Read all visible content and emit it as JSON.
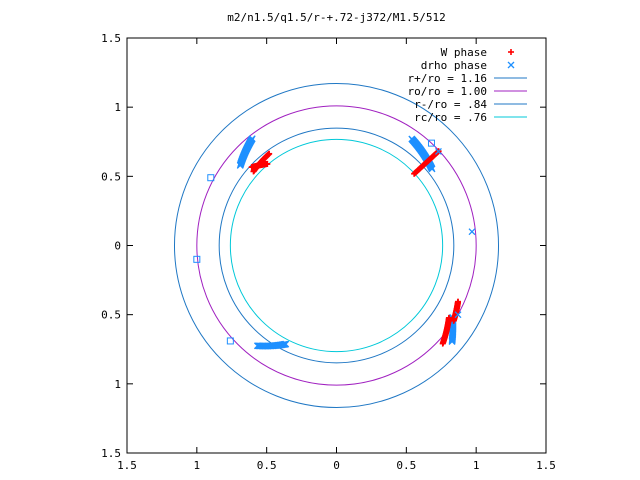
{
  "chart_data": {
    "type": "scatter",
    "title": "m2/n1.5/q1.5/r-+.72-j372/M1.5/512",
    "xlim": [
      -1.5,
      1.5
    ],
    "ylim": [
      -1.5,
      1.5
    ],
    "x_ticks": [
      {
        "value": -1.5,
        "label": "1.5"
      },
      {
        "value": -1,
        "label": "1"
      },
      {
        "value": -0.5,
        "label": "0.5"
      },
      {
        "value": 0,
        "label": "0"
      },
      {
        "value": 0.5,
        "label": "0.5"
      },
      {
        "value": 1,
        "label": "1"
      },
      {
        "value": 1.5,
        "label": "1.5"
      }
    ],
    "y_ticks": [
      {
        "value": 1.5,
        "label": "1.5"
      },
      {
        "value": 1,
        "label": "1"
      },
      {
        "value": 0.5,
        "label": "0.5"
      },
      {
        "value": 0,
        "label": "0"
      },
      {
        "value": -0.5,
        "label": "0.5"
      },
      {
        "value": -1,
        "label": "1"
      },
      {
        "value": -1.5,
        "label": "1.5"
      }
    ],
    "grid": false,
    "legend_position": "top-right",
    "series": [
      {
        "name": "W phase",
        "kind": "points",
        "marker": "plus",
        "color": "#ff0000",
        "arcs": [
          {
            "r_start": 0.77,
            "r_end": 0.83,
            "theta_start_deg": 130,
            "theta_end_deg": 137
          },
          {
            "r_start": 0.8,
            "r_end": 0.82,
            "theta_start_deg": 138,
            "theta_end_deg": 126
          },
          {
            "r_start": 0.76,
            "r_end": 1.0,
            "theta_start_deg": 43,
            "theta_end_deg": 43
          },
          {
            "r_start": 0.96,
            "r_end": 1.0,
            "theta_start_deg": -25,
            "theta_end_deg": -33
          },
          {
            "r_start": 0.96,
            "r_end": 1.04,
            "theta_start_deg": -33,
            "theta_end_deg": -43
          }
        ]
      },
      {
        "name": "drho phase",
        "kind": "points",
        "marker": "cross",
        "color": "#1e90ff",
        "arcs": [
          {
            "r_start": 0.9,
            "r_end": 0.98,
            "theta_start_deg": 140,
            "theta_end_deg": 128
          },
          {
            "r_start": 0.88,
            "r_end": 0.94,
            "theta_start_deg": 39,
            "theta_end_deg": 55
          },
          {
            "r_start": 0.98,
            "r_end": 1.08,
            "theta_start_deg": -32,
            "theta_end_deg": -40
          },
          {
            "r_start": 0.8,
            "r_end": 0.92,
            "theta_start_deg": -117,
            "theta_end_deg": -128
          }
        ]
      },
      {
        "name": "r+/ro = 1.16",
        "kind": "circle",
        "r": 1.16,
        "color": "#1f77c4"
      },
      {
        "name": "ro/ro = 1.00",
        "kind": "circle",
        "r": 1.0,
        "color": "#a020c0"
      },
      {
        "name": "r-/ro = .84",
        "kind": "circle",
        "r": 0.84,
        "color": "#1f77c4"
      },
      {
        "name": "rc/ro = .76",
        "kind": "circle",
        "r": 0.76,
        "color": "#00c8d8"
      }
    ],
    "isolated_markers": [
      {
        "x": 0.97,
        "y": 0.1,
        "marker": "cross",
        "color": "#1e90ff"
      },
      {
        "x": 0.73,
        "y": 0.68,
        "marker": "cross",
        "color": "#1e90ff"
      },
      {
        "x": 0.87,
        "y": -0.5,
        "marker": "cross",
        "color": "#1e90ff"
      },
      {
        "x": 0.68,
        "y": 0.74,
        "marker": "square",
        "color": "#1e90ff"
      },
      {
        "x": -0.9,
        "y": 0.49,
        "marker": "square",
        "color": "#1e90ff"
      },
      {
        "x": -1.0,
        "y": -0.1,
        "marker": "square",
        "color": "#1e90ff"
      },
      {
        "x": -0.76,
        "y": -0.69,
        "marker": "square",
        "color": "#1e90ff"
      }
    ]
  }
}
